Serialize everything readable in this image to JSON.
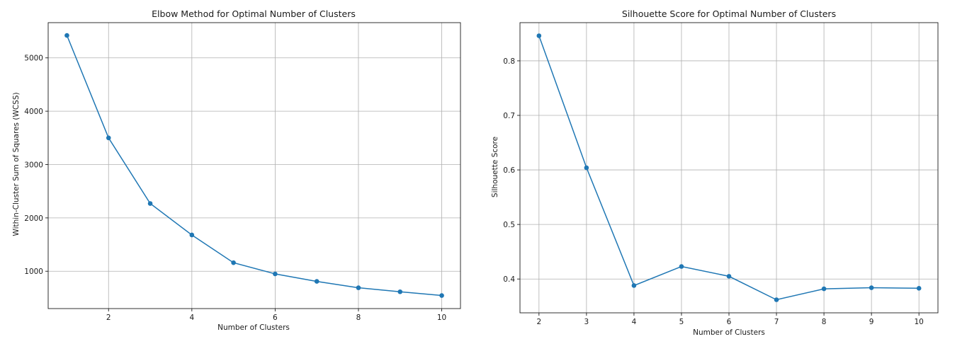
{
  "chart_data": [
    {
      "type": "line",
      "title": "Elbow Method for Optimal Number of Clusters",
      "xlabel": "Number of Clusters",
      "ylabel": "Within-Cluster Sum of Squares (WCSS)",
      "x": [
        1,
        2,
        3,
        4,
        5,
        6,
        7,
        8,
        9,
        10
      ],
      "series": [
        {
          "values": [
            5420,
            3500,
            2270,
            1680,
            1160,
            950,
            810,
            690,
            615,
            545
          ]
        }
      ],
      "xlim": [
        0.55,
        10.45
      ],
      "ylim": [
        300,
        5660
      ],
      "xticks": [
        2,
        4,
        6,
        8,
        10
      ],
      "yticks": [
        1000,
        2000,
        3000,
        4000,
        5000
      ],
      "grid": true,
      "color": "#1f77b4"
    },
    {
      "type": "line",
      "title": "Silhouette Score for Optimal Number of Clusters",
      "xlabel": "Number of Clusters",
      "ylabel": "Silhouette Score",
      "x": [
        2,
        3,
        4,
        5,
        6,
        7,
        8,
        9,
        10
      ],
      "series": [
        {
          "values": [
            0.846,
            0.604,
            0.388,
            0.423,
            0.405,
            0.362,
            0.382,
            0.384,
            0.383
          ]
        }
      ],
      "xlim": [
        1.6,
        10.4
      ],
      "ylim": [
        0.338,
        0.87
      ],
      "xticks": [
        2,
        3,
        4,
        5,
        6,
        7,
        8,
        9,
        10
      ],
      "yticks": [
        0.4,
        0.5,
        0.6,
        0.7,
        0.8
      ],
      "grid": true,
      "color": "#1f77b4"
    }
  ]
}
